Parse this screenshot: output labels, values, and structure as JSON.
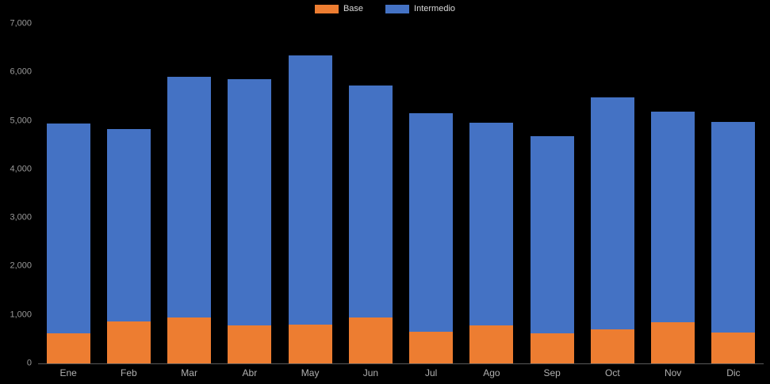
{
  "chart_data": {
    "type": "bar",
    "stacked": true,
    "title": "",
    "xlabel": "",
    "ylabel": "",
    "categories": [
      "Ene",
      "Feb",
      "Mar",
      "Abr",
      "May",
      "Jun",
      "Jul",
      "Ago",
      "Sep",
      "Oct",
      "Nov",
      "Dic"
    ],
    "series": [
      {
        "name": "Base",
        "color": "#ED7D31",
        "values": [
          620,
          860,
          950,
          780,
          800,
          950,
          660,
          780,
          620,
          700,
          850,
          640
        ]
      },
      {
        "name": "Intermedio",
        "color": "#4472C4",
        "values": [
          4330,
          3970,
          4950,
          5080,
          5550,
          4770,
          4490,
          4180,
          4070,
          4790,
          4340,
          4330
        ]
      }
    ],
    "totals": [
      4950,
      4830,
      5900,
      5860,
      6350,
      5720,
      5150,
      4960,
      4690,
      5490,
      5190,
      4970
    ],
    "ylim": [
      0,
      7000
    ],
    "y_tick_step": 1000,
    "y_tick_labels": [
      "0",
      "1,000",
      "2,000",
      "3,000",
      "4,000",
      "5,000",
      "6,000",
      "7,000"
    ],
    "legend_position": "top",
    "grid": false,
    "colors": {
      "background": "#000000",
      "axis_line": "#595959",
      "tick_label": "#9a9a9a",
      "category_label": "#b0b0b0",
      "legend_label": "#d9d9d9"
    }
  }
}
